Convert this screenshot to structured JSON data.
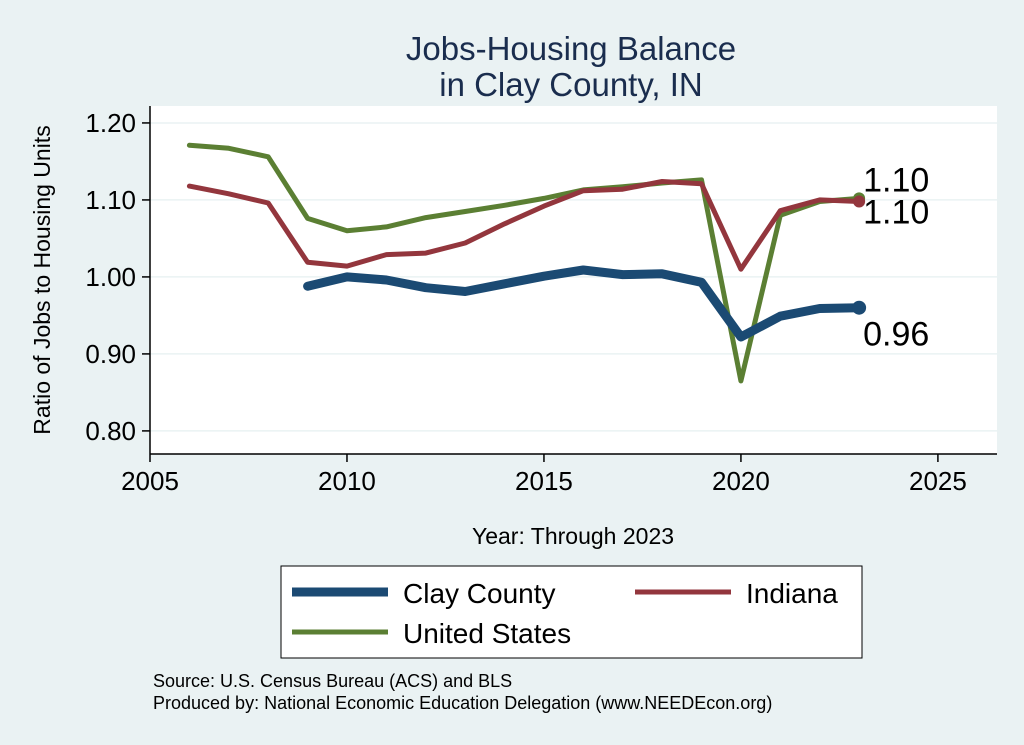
{
  "chart_data": {
    "type": "line",
    "title_lines": [
      "Jobs-Housing Balance",
      "in Clay County, IN"
    ],
    "xlabel": "Year: Through 2023",
    "ylabel": "Ratio of Jobs to Housing Units",
    "xlim": [
      2005,
      2026.5
    ],
    "ylim": [
      0.77,
      1.222
    ],
    "x_ticks": [
      2005,
      2010,
      2015,
      2020,
      2025
    ],
    "y_ticks": [
      0.8,
      0.9,
      1.0,
      1.1,
      1.2
    ],
    "y_tick_labels": [
      "0.80",
      "0.90",
      "1.00",
      "1.10",
      "1.20"
    ],
    "grid": "horizontal",
    "legend_position": "bottom",
    "series": [
      {
        "name": "Clay County",
        "color": "#1b4a73",
        "x": [
          2009,
          2010,
          2011,
          2012,
          2013,
          2014,
          2015,
          2016,
          2017,
          2018,
          2019,
          2020,
          2021,
          2022,
          2023
        ],
        "values": [
          0.988,
          1.0,
          0.996,
          0.986,
          0.981,
          0.991,
          1.001,
          1.009,
          1.003,
          1.004,
          0.993,
          0.922,
          0.949,
          0.959,
          0.96
        ],
        "end_label": "0.96"
      },
      {
        "name": "Indiana",
        "color": "#93363d",
        "x": [
          2006,
          2007,
          2008,
          2009,
          2010,
          2011,
          2012,
          2013,
          2014,
          2015,
          2016,
          2017,
          2018,
          2019,
          2020,
          2021,
          2022,
          2023
        ],
        "values": [
          1.118,
          1.108,
          1.096,
          1.019,
          1.014,
          1.029,
          1.031,
          1.044,
          1.069,
          1.092,
          1.112,
          1.114,
          1.124,
          1.121,
          1.01,
          1.086,
          1.1,
          1.098
        ],
        "end_label": "1.10"
      },
      {
        "name": "United States",
        "color": "#5b7f33",
        "x": [
          2006,
          2007,
          2008,
          2009,
          2010,
          2011,
          2012,
          2013,
          2014,
          2015,
          2016,
          2017,
          2018,
          2019,
          2020,
          2021,
          2022,
          2023
        ],
        "values": [
          1.171,
          1.167,
          1.156,
          1.076,
          1.06,
          1.065,
          1.077,
          1.085,
          1.093,
          1.102,
          1.113,
          1.117,
          1.122,
          1.126,
          0.865,
          1.08,
          1.098,
          1.102
        ],
        "end_label": "1.10"
      }
    ],
    "source_notes": [
      "Source: U.S. Census Bureau (ACS) and BLS",
      "Produced by: National Economic Education Delegation (www.NEEDEcon.org)"
    ]
  }
}
